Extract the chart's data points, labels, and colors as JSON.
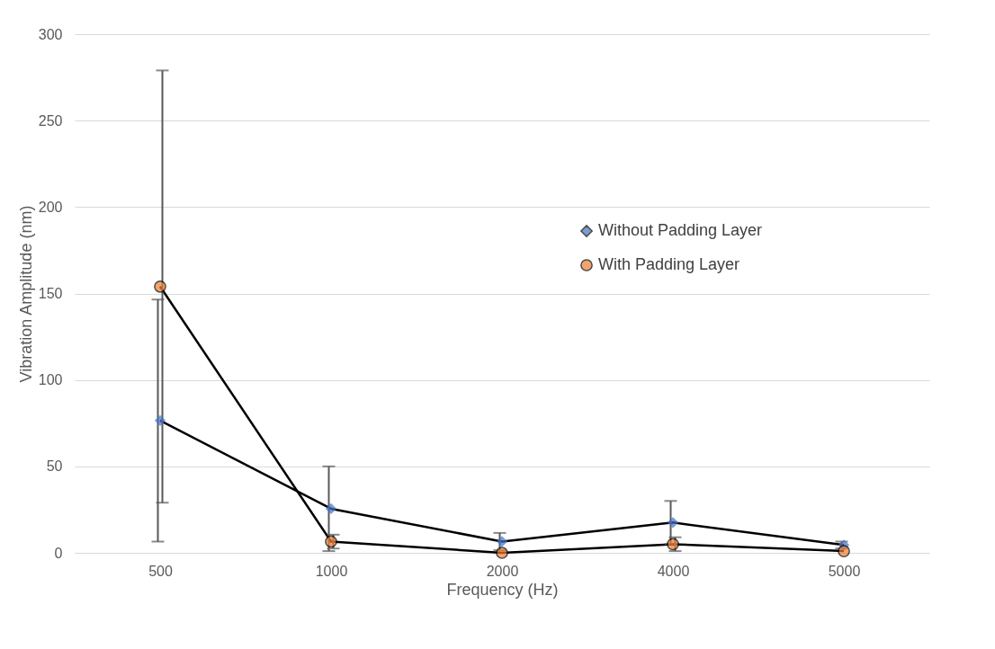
{
  "chart_data": {
    "type": "line",
    "xlabel": "Frequency (Hz)",
    "ylabel": "Vibration Amplitude (nm)",
    "categories": [
      "500",
      "1000",
      "2000",
      "4000",
      "5000"
    ],
    "series": [
      {
        "name": "Without Padding Layer",
        "color": "#4472c4",
        "marker": "diamond",
        "values": [
          76.5,
          25.5,
          6.5,
          17.5,
          4.5
        ],
        "errors": [
          70,
          24.5,
          5,
          12.5,
          2
        ]
      },
      {
        "name": "With Padding Layer",
        "color": "#ed7d31",
        "marker": "circle",
        "values": [
          154,
          6.5,
          0,
          5,
          1
        ],
        "errors": [
          125,
          4,
          null,
          4,
          null
        ]
      }
    ],
    "ylim": [
      0,
      300
    ],
    "yticks": [
      0,
      50,
      100,
      150,
      200,
      250,
      300
    ],
    "grid": "y",
    "legend": "right",
    "line_style": "solid"
  }
}
